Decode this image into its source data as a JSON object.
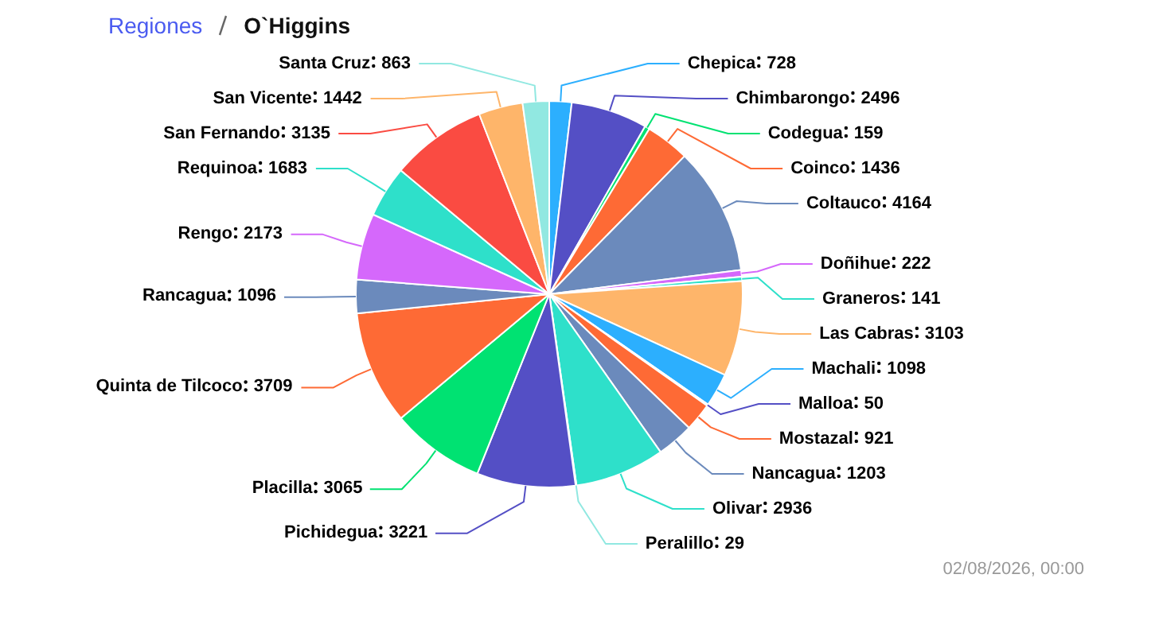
{
  "chart_data": {
    "type": "pie",
    "subtitle": "Regiones",
    "title": "O`Higgins",
    "categories": [
      "Chepica",
      "Chimbarongo",
      "Codegua",
      "Coinco",
      "Coltauco",
      "Doñihue",
      "Graneros",
      "Las Cabras",
      "Machali",
      "Malloa",
      "Mostazal",
      "Nancagua",
      "Olivar",
      "Peralillo",
      "Pichidegua",
      "Placilla",
      "Quinta de Tilcoco",
      "Rancagua",
      "Rengo",
      "Requinoa",
      "San Fernando",
      "San Vicente",
      "Santa Cruz"
    ],
    "values": [
      728,
      2496,
      159,
      1436,
      4164,
      222,
      141,
      3103,
      1098,
      50,
      921,
      1203,
      2936,
      29,
      3221,
      3065,
      3709,
      1096,
      2173,
      1683,
      3135,
      1442,
      863
    ],
    "colors": [
      "#2caffe",
      "#544fc5",
      "#00e272",
      "#fe6a35",
      "#6b8abc",
      "#d568fb",
      "#2ee0ca",
      "#feb56a",
      "#2caffe",
      "#544fc5",
      "#fe6a35",
      "#6b8abc",
      "#2ee0ca",
      "#91e8e1",
      "#544fc5",
      "#00e272",
      "#fe6a35",
      "#6b8abc",
      "#d568fb",
      "#2ee0ca",
      "#fa4b42",
      "#feb56a",
      "#91e8e1"
    ],
    "data_labels": true,
    "legend": false,
    "annotations": [
      "02/08/2026, 00:00"
    ]
  }
}
